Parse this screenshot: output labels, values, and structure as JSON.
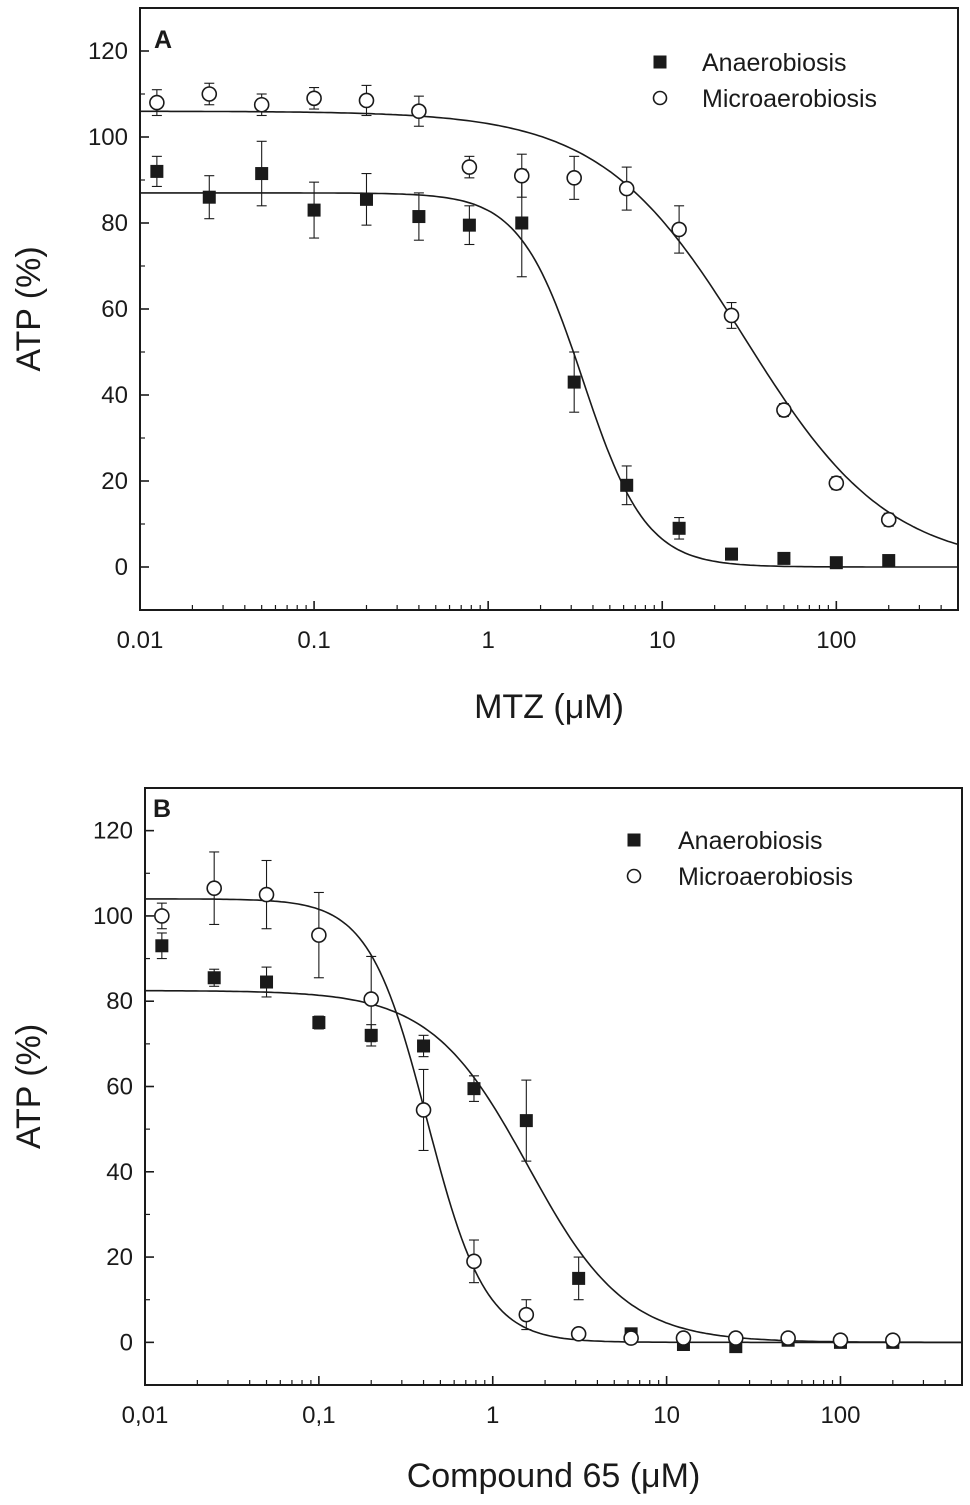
{
  "chart_data": [
    {
      "type": "scatter",
      "panel_label": "A",
      "xscale": "log",
      "xlabel": "MTZ (μM)",
      "ylabel": "ATP (%)",
      "xlim": [
        0.01,
        500
      ],
      "ylim": [
        -10,
        130
      ],
      "x_ticks": [
        0.01,
        0.1,
        1,
        10,
        100
      ],
      "x_tick_labels": [
        "0.01",
        "0.1",
        "1",
        "10",
        "100"
      ],
      "y_ticks": [
        0,
        20,
        40,
        60,
        80,
        100,
        120
      ],
      "y_tick_labels": [
        "0",
        "20",
        "40",
        "60",
        "80",
        "100",
        "120"
      ],
      "legend_position": "top-right",
      "series": [
        {
          "name": "Anaerobiosis",
          "marker": "filled-square",
          "x": [
            0.0125,
            0.025,
            0.05,
            0.1,
            0.2,
            0.4,
            0.78,
            1.56,
            3.12,
            6.25,
            12.5,
            25,
            50,
            100,
            200
          ],
          "y": [
            92,
            86,
            91.5,
            83,
            85.5,
            81.5,
            79.5,
            80,
            43,
            19,
            9,
            3,
            2,
            1,
            1.5
          ],
          "err": [
            3.5,
            5,
            7.5,
            6.5,
            6,
            5.5,
            4.5,
            12.5,
            7,
            4.5,
            2.5,
            1,
            1,
            0.5,
            1
          ],
          "fit": {
            "top": 87,
            "bottom": 0,
            "ec50": 3.5,
            "hill": 2.4
          }
        },
        {
          "name": "Microaerobiosis",
          "marker": "open-circle",
          "x": [
            0.0125,
            0.025,
            0.05,
            0.1,
            0.2,
            0.4,
            0.78,
            1.56,
            3.12,
            6.25,
            12.5,
            25,
            50,
            100,
            200
          ],
          "y": [
            108,
            110,
            107.5,
            109,
            108.5,
            106,
            93,
            91,
            90.5,
            88,
            78.5,
            58.5,
            36.5,
            19.5,
            11
          ],
          "err": [
            3,
            2.5,
            2.5,
            2.5,
            3.5,
            3.5,
            2.5,
            5,
            5,
            5,
            5.5,
            3,
            1.5,
            1.5,
            1.5
          ],
          "fit": {
            "top": 106,
            "bottom": 0,
            "ec50": 30,
            "hill": 1.05
          }
        }
      ]
    },
    {
      "type": "scatter",
      "panel_label": "B",
      "xscale": "log",
      "xlabel": "Compound 65 (μM)",
      "ylabel": "ATP (%)",
      "xlim": [
        0.01,
        500
      ],
      "ylim": [
        -10,
        130
      ],
      "x_ticks": [
        0.01,
        0.1,
        1,
        10,
        100
      ],
      "x_tick_labels": [
        "0,01",
        "0,1",
        "1",
        "10",
        "100"
      ],
      "y_ticks": [
        0,
        20,
        40,
        60,
        80,
        100,
        120
      ],
      "y_tick_labels": [
        "0",
        "20",
        "40",
        "60",
        "80",
        "100",
        "120"
      ],
      "legend_position": "top-right",
      "series": [
        {
          "name": "Anaerobiosis",
          "marker": "filled-square",
          "x": [
            0.0125,
            0.025,
            0.05,
            0.1,
            0.2,
            0.4,
            0.78,
            1.56,
            3.12,
            6.25,
            12.5,
            25,
            50,
            100,
            200
          ],
          "y": [
            93,
            85.5,
            84.5,
            75,
            72,
            69.5,
            59.5,
            52,
            15,
            2,
            -0.5,
            -1,
            0.5,
            0,
            0
          ],
          "err": [
            3,
            2,
            3.5,
            1.5,
            2.5,
            2.5,
            3,
            9.5,
            5,
            1,
            0.5,
            0.5,
            0.5,
            0.5,
            0.5
          ],
          "fit": {
            "top": 82.5,
            "bottom": 0,
            "ec50": 1.6,
            "hill": 1.55
          }
        },
        {
          "name": "Microaerobiosis",
          "marker": "open-circle",
          "x": [
            0.0125,
            0.025,
            0.05,
            0.1,
            0.2,
            0.4,
            0.78,
            1.56,
            3.12,
            6.25,
            12.5,
            25,
            50,
            100,
            200
          ],
          "y": [
            100,
            106.5,
            105,
            95.5,
            80.5,
            54.5,
            19,
            6.5,
            2,
            1,
            1,
            1,
            1,
            0.5,
            0.5
          ],
          "err": [
            3,
            8.5,
            8,
            10,
            10,
            9.5,
            5,
            3.5,
            1,
            0.5,
            0.5,
            0.5,
            0.5,
            0.5,
            0.5
          ],
          "fit": {
            "top": 104,
            "bottom": 0,
            "ec50": 0.42,
            "hill": 2.6
          }
        }
      ]
    }
  ]
}
